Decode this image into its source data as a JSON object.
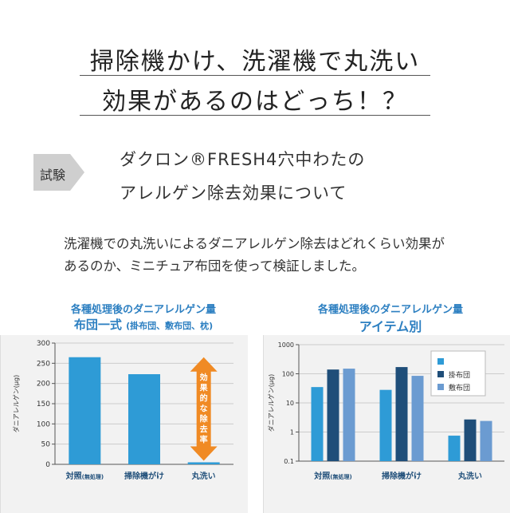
{
  "headline": {
    "line1": "掃除機かけ、洗濯機で丸洗い",
    "line2": "効果があるのはどっち！？"
  },
  "test_badge": "試験",
  "subtitle": {
    "line1": "ダクロン®FRESH4穴中わたの",
    "line2": "アレルゲン除去効果について"
  },
  "description": {
    "line1": "洗濯機での丸洗いによるダニアレルゲン除去はどれくらい効果が",
    "line2": "あるのか、ミニチュア布団を使って検証しました。"
  },
  "colors": {
    "title_blue": "#2c7fc1",
    "bar_blue": "#2e9bd6",
    "navy": "#1f4e79",
    "light_blue": "#6b9bd1",
    "arrow_orange": "#f08a24",
    "panel_bg": "#f2f2f2"
  },
  "chart_data": [
    {
      "type": "bar",
      "title": "各種処理後のダニアレルゲン量",
      "subtitle_main": "布団一式",
      "subtitle_note": "(掛布団、敷布団、枕)",
      "ylabel": "ダニアレルゲン(μg)",
      "ylim": [
        0,
        300
      ],
      "yticks": [
        "0",
        "50",
        "100",
        "150",
        "200",
        "250",
        "300"
      ],
      "categories": [
        "対照",
        "掃除機がけ",
        "丸洗い"
      ],
      "category_notes": [
        "(無処理)",
        "",
        ""
      ],
      "values": [
        265,
        223,
        5
      ],
      "annotation": "効果的な除去率",
      "grid": true
    },
    {
      "type": "bar",
      "scale": "log",
      "title": "各種処理後のダニアレルゲン量",
      "subtitle_main": "アイテム別",
      "ylabel": "ダニアレルゲン(μg)",
      "ylim": [
        0.1,
        1000
      ],
      "yticks": [
        "0.1",
        "1",
        "10",
        "100",
        "1000"
      ],
      "categories": [
        "対照",
        "掃除機がけ",
        "丸洗い"
      ],
      "category_notes": [
        "(無処理)",
        "",
        ""
      ],
      "series": [
        {
          "name": "",
          "values": [
            35,
            28,
            0.75
          ]
        },
        {
          "name": "掛布団",
          "values": [
            140,
            170,
            2.7
          ]
        },
        {
          "name": "敷布団",
          "values": [
            150,
            85,
            2.4
          ]
        }
      ],
      "legend_position": "top-right",
      "grid": true
    }
  ]
}
